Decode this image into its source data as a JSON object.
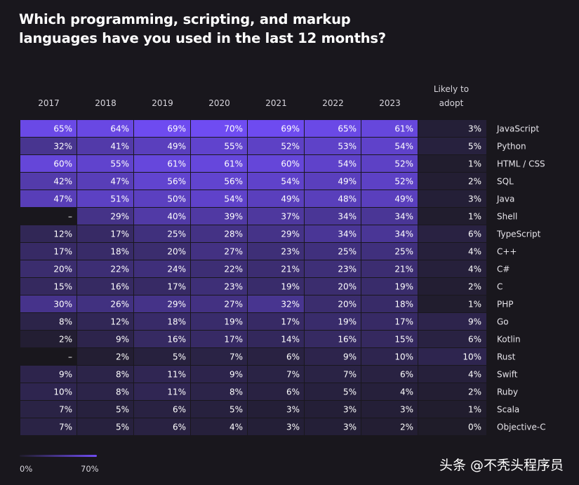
{
  "title_lines": [
    "Which programming, scripting, and markup",
    "languages have you used in the last 12 months?"
  ],
  "legend": {
    "min": "0%",
    "max": "70%"
  },
  "watermark": "头条 @不秃头程序员",
  "colors": {
    "background": "#19171d",
    "low": "#1f1c29",
    "high": "#6f4cf2",
    "grid": "#0e0d12"
  },
  "chart_data": {
    "type": "heatmap",
    "title": "Which programming, scripting, and markup languages have you used in the last 12 months?",
    "columns": [
      "2017",
      "2018",
      "2019",
      "2020",
      "2021",
      "2022",
      "2023"
    ],
    "adopt_column": "Likely to adopt",
    "rows": [
      {
        "label": "JavaScript",
        "values": [
          "65%",
          "64%",
          "69%",
          "70%",
          "69%",
          "65%",
          "61%"
        ],
        "adopt": "3%"
      },
      {
        "label": "Python",
        "values": [
          "32%",
          "41%",
          "49%",
          "55%",
          "52%",
          "53%",
          "54%"
        ],
        "adopt": "5%"
      },
      {
        "label": "HTML / CSS",
        "values": [
          "60%",
          "55%",
          "61%",
          "61%",
          "60%",
          "54%",
          "52%"
        ],
        "adopt": "1%"
      },
      {
        "label": "SQL",
        "values": [
          "42%",
          "47%",
          "56%",
          "56%",
          "54%",
          "49%",
          "52%"
        ],
        "adopt": "2%"
      },
      {
        "label": "Java",
        "values": [
          "47%",
          "51%",
          "50%",
          "54%",
          "49%",
          "48%",
          "49%"
        ],
        "adopt": "3%"
      },
      {
        "label": "Shell",
        "values": [
          "–",
          "29%",
          "40%",
          "39%",
          "37%",
          "34%",
          "34%"
        ],
        "adopt": "1%"
      },
      {
        "label": "TypeScript",
        "values": [
          "12%",
          "17%",
          "25%",
          "28%",
          "29%",
          "34%",
          "34%"
        ],
        "adopt": "6%"
      },
      {
        "label": "C++",
        "values": [
          "17%",
          "18%",
          "20%",
          "27%",
          "23%",
          "25%",
          "25%"
        ],
        "adopt": "4%"
      },
      {
        "label": "C#",
        "values": [
          "20%",
          "22%",
          "24%",
          "22%",
          "21%",
          "23%",
          "21%"
        ],
        "adopt": "4%"
      },
      {
        "label": "C",
        "values": [
          "15%",
          "16%",
          "17%",
          "23%",
          "19%",
          "20%",
          "19%"
        ],
        "adopt": "2%"
      },
      {
        "label": "PHP",
        "values": [
          "30%",
          "26%",
          "29%",
          "27%",
          "32%",
          "20%",
          "18%"
        ],
        "adopt": "1%"
      },
      {
        "label": "Go",
        "values": [
          "8%",
          "12%",
          "18%",
          "19%",
          "17%",
          "19%",
          "17%"
        ],
        "adopt": "9%"
      },
      {
        "label": "Kotlin",
        "values": [
          "2%",
          "9%",
          "16%",
          "17%",
          "14%",
          "16%",
          "15%"
        ],
        "adopt": "6%"
      },
      {
        "label": "Rust",
        "values": [
          "–",
          "2%",
          "5%",
          "7%",
          "6%",
          "9%",
          "10%"
        ],
        "adopt": "10%"
      },
      {
        "label": "Swift",
        "values": [
          "9%",
          "8%",
          "11%",
          "9%",
          "7%",
          "7%",
          "6%"
        ],
        "adopt": "4%"
      },
      {
        "label": "Ruby",
        "values": [
          "10%",
          "8%",
          "11%",
          "8%",
          "6%",
          "5%",
          "4%"
        ],
        "adopt": "2%"
      },
      {
        "label": "Scala",
        "values": [
          "7%",
          "5%",
          "6%",
          "5%",
          "3%",
          "3%",
          "3%"
        ],
        "adopt": "1%"
      },
      {
        "label": "Objective-C",
        "values": [
          "7%",
          "5%",
          "6%",
          "4%",
          "3%",
          "3%",
          "2%"
        ],
        "adopt": "0%"
      }
    ],
    "scale_max": 70
  }
}
